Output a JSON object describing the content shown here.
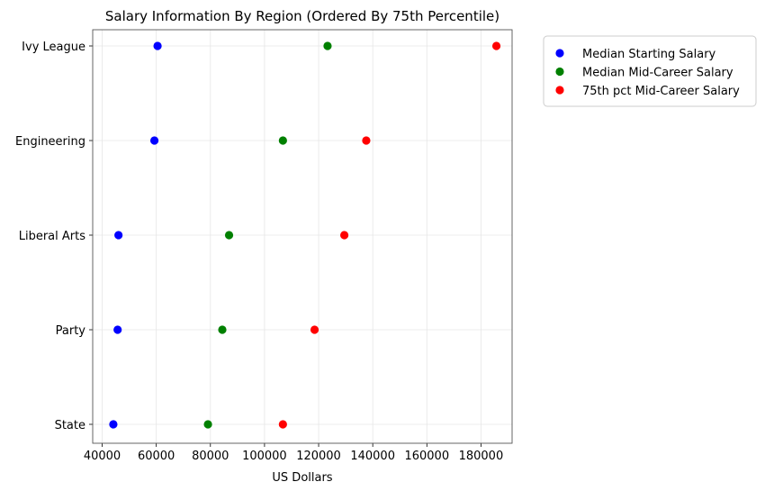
{
  "chart_data": {
    "type": "scatter",
    "title": "Salary Information By Region (Ordered By 75th Percentile)",
    "xlabel": "US Dollars",
    "ylabel": "",
    "categories": [
      "Ivy League",
      "Engineering",
      "Liberal Arts",
      "Party",
      "State"
    ],
    "xlim": [
      36500,
      191500
    ],
    "xticks": [
      40000,
      60000,
      80000,
      100000,
      120000,
      140000,
      160000,
      180000
    ],
    "xtick_labels": [
      "40000",
      "60000",
      "80000",
      "100000",
      "120000",
      "140000",
      "160000",
      "180000"
    ],
    "grid": true,
    "legend": "upper-right-outside",
    "series": [
      {
        "name": "Median Starting Salary",
        "color": "#0000ff",
        "values": [
          60475,
          59310,
          46035,
          45716,
          44126
        ]
      },
      {
        "name": "Median Mid-Career Salary",
        "color": "#008000",
        "values": [
          123300,
          106800,
          86900,
          84400,
          79100
        ]
      },
      {
        "name": "75th pct Mid-Career Salary",
        "color": "#ff0000",
        "values": [
          185700,
          137600,
          129500,
          118500,
          106800
        ]
      }
    ]
  }
}
